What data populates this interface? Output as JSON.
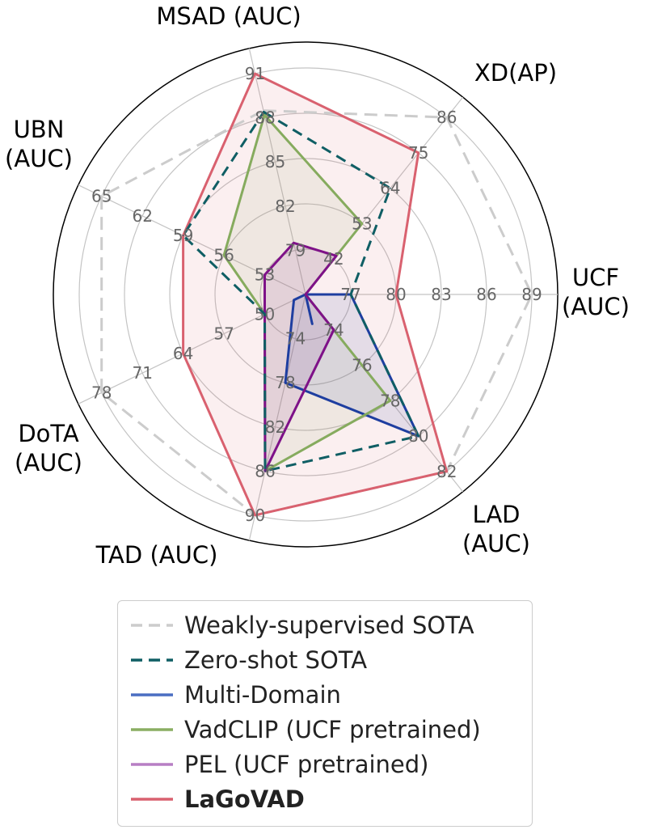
{
  "chart_data": {
    "type": "radar",
    "axes": [
      {
        "label": "MSAD (AUC)",
        "ticks": [
          "79",
          "82",
          "85",
          "88",
          "91"
        ]
      },
      {
        "label": "XD(AP)",
        "ticks": [
          "42",
          "53",
          "64",
          "75",
          "86"
        ]
      },
      {
        "label": "UCF\n(AUC)",
        "ticks": [
          "77",
          "80",
          "83",
          "86",
          "89"
        ]
      },
      {
        "label": "LAD\n(AUC)",
        "ticks": [
          "74",
          "76",
          "78",
          "80",
          "82"
        ]
      },
      {
        "label": "TAD (AUC)",
        "ticks": [
          "74",
          "78",
          "82",
          "86",
          "90"
        ]
      },
      {
        "label": "DoTA\n(AUC)",
        "ticks": [
          "50",
          "57",
          "64",
          "71",
          "78"
        ]
      },
      {
        "label": "UBN\n(AUC)",
        "ticks": [
          "53",
          "56",
          "59",
          "62",
          "65"
        ]
      }
    ],
    "grid": true,
    "legend_position": "bottom",
    "series": [
      {
        "name": "Weakly-supervised SOTA",
        "values": [
          88.5,
          86,
          89,
          82,
          90,
          78,
          65
        ],
        "color": "#cccccc",
        "style": "dashed",
        "fill": false,
        "bold": false
      },
      {
        "name": "Zero-shot SOTA",
        "values": [
          88.4,
          64,
          77,
          80,
          86,
          50,
          59
        ],
        "color": "#0f5e64",
        "style": "dashed",
        "fill": false,
        "bold": false
      },
      {
        "name": "Multi-Domain",
        "values": [
          74,
          31,
          77,
          80,
          78,
          45,
          50
        ],
        "color": "#1e3ea0",
        "style": "solid",
        "fill": true,
        "bold": false
      },
      {
        "name": "VadCLIP (UCF pretrained)",
        "values": [
          88.2,
          53,
          74,
          78,
          86,
          50,
          56
        ],
        "color": "#86ab5e",
        "style": "solid",
        "fill": true,
        "bold": false
      },
      {
        "name": "PEL (UCF pretrained)",
        "values": [
          79.5,
          43,
          74,
          74,
          86,
          50,
          53
        ],
        "color": "#7e1188",
        "style": "solid",
        "fill": true,
        "bold": false
      },
      {
        "name": "LaGoVAD",
        "values": [
          91,
          75,
          80,
          82,
          90,
          64,
          59
        ],
        "color": "#d9616f",
        "style": "solid",
        "fill": true,
        "bold": true
      }
    ]
  }
}
